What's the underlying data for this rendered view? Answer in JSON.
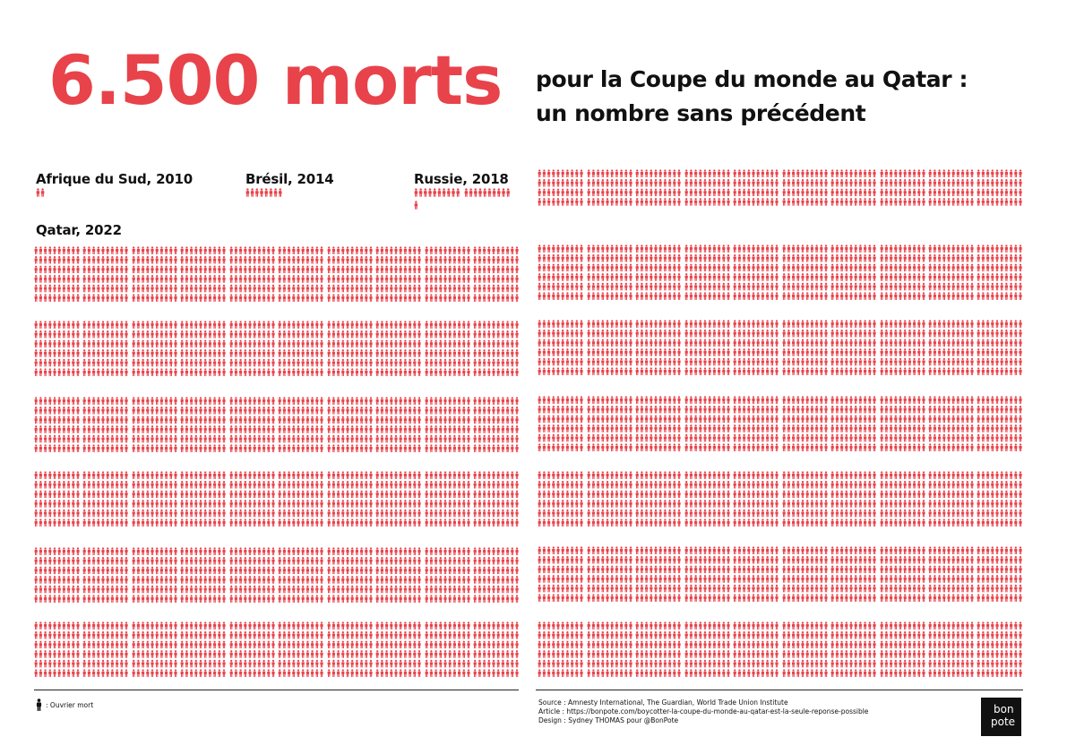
{
  "header": {
    "title": "6.500 morts",
    "subtitle_line1": "pour la Coupe du monde au Qatar :",
    "subtitle_line2": "un nombre sans précédent"
  },
  "world_cups": [
    {
      "label": "Afrique du Sud, 2010"
    },
    {
      "label": "Brésil, 2014"
    },
    {
      "label": "Russie, 2018"
    },
    {
      "label": "Qatar, 2022"
    }
  ],
  "legend": {
    "icon": "worker-icon",
    "text": ": Ouvrier mort"
  },
  "credits": {
    "source": "Source : Amnesty International, The Guardian, World Trade Union Institute",
    "article": "Article : https://bonpote.com/boycotter-la-coupe-du-monde-au-qatar-est-la-seule-reponse-possible",
    "design": "Design : Sydney THOMAS pour @BonPote"
  },
  "logo": {
    "line1": "bon",
    "line2": "pote"
  },
  "colors": {
    "accent": "#e8434a",
    "text": "#111111"
  }
}
